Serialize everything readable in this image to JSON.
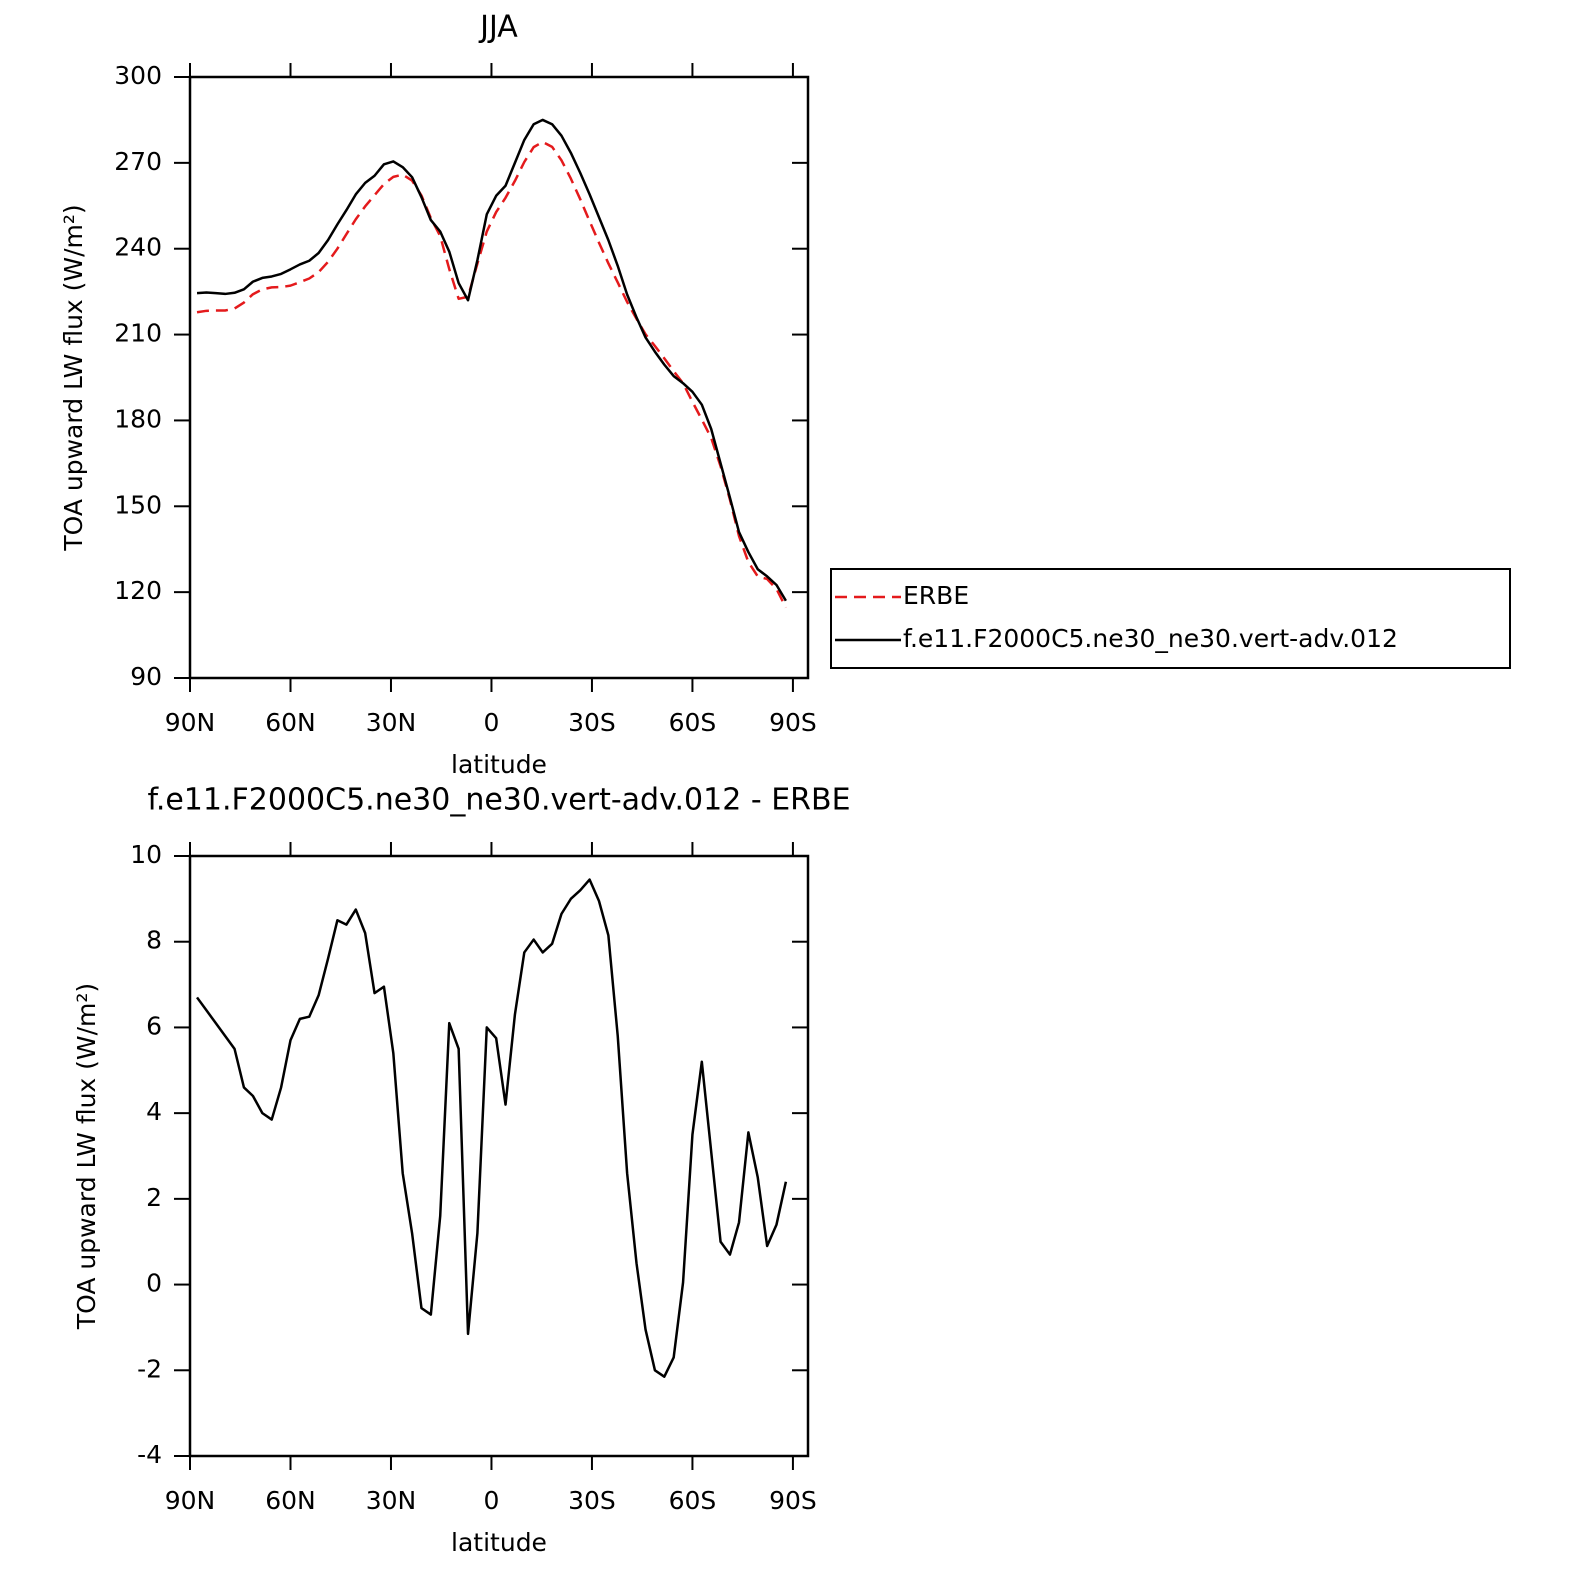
{
  "chart_data": [
    {
      "type": "line",
      "title": "JJA",
      "xlabel": "latitude",
      "ylabel": "TOA upward LW flux (W/m²)",
      "x": [
        87.9,
        85.1,
        82.3,
        79.5,
        76.7,
        73.9,
        71.2,
        68.4,
        65.6,
        62.8,
        60.0,
        57.2,
        54.4,
        51.6,
        48.8,
        46.0,
        43.3,
        40.5,
        37.7,
        34.9,
        32.1,
        29.3,
        26.5,
        23.7,
        20.9,
        18.1,
        15.3,
        12.6,
        9.8,
        7.0,
        4.2,
        1.4,
        -1.4,
        -4.2,
        -7.0,
        -9.8,
        -12.6,
        -15.3,
        -18.1,
        -20.9,
        -23.7,
        -26.5,
        -29.3,
        -32.1,
        -34.9,
        -37.7,
        -40.5,
        -43.3,
        -46.0,
        -48.8,
        -51.6,
        -54.4,
        -57.2,
        -60.0,
        -62.8,
        -65.6,
        -68.4,
        -71.2,
        -73.9,
        -76.7,
        -79.5,
        -82.3,
        -85.1,
        -87.9
      ],
      "series": [
        {
          "name": "ERBE",
          "color": "#e41a1c",
          "style": "dashed",
          "values": [
            217.8,
            218.3,
            218.4,
            218.4,
            219.1,
            221.2,
            224.1,
            225.8,
            226.5,
            226.6,
            227.1,
            228.3,
            229.6,
            231.8,
            235.4,
            240.0,
            245.1,
            250.3,
            254.8,
            258.7,
            262.6,
            265.1,
            265.9,
            263.8,
            258.6,
            250.7,
            244.4,
            232.9,
            222.5,
            223.2,
            234.8,
            246.0,
            252.8,
            257.8,
            263.7,
            270.3,
            275.5,
            277.3,
            275.6,
            270.9,
            264.5,
            257.3,
            249.6,
            242.1,
            234.9,
            228.2,
            221.4,
            215.5,
            210.1,
            206.0,
            201.7,
            197.2,
            193.0,
            186.5,
            180.3,
            173.9,
            164.0,
            152.3,
            139.6,
            130.5,
            125.5,
            124.6,
            121.1,
            114.6
          ]
        },
        {
          "name": "f.e11.F2000C5.ne30_ne30.vert-adv.012",
          "color": "#000000",
          "style": "solid",
          "values": [
            224.5,
            224.7,
            224.5,
            224.2,
            224.6,
            225.8,
            228.5,
            229.8,
            230.3,
            231.2,
            232.8,
            234.5,
            235.8,
            238.5,
            243,
            248.5,
            253.5,
            259,
            263,
            265.5,
            269.5,
            270.5,
            268.5,
            265,
            258,
            250,
            246,
            239,
            228,
            222,
            236,
            252,
            258.5,
            262,
            270,
            278,
            283.5,
            285,
            283.5,
            279.5,
            273.5,
            266.5,
            259,
            251,
            243,
            234,
            224,
            216,
            209,
            204,
            199.5,
            195.5,
            193,
            190,
            185.5,
            177,
            165,
            153,
            141,
            134,
            128,
            125.5,
            122.5,
            117
          ]
        }
      ],
      "xlim": [
        90,
        -94.5
      ],
      "xticks": [
        {
          "value": 90,
          "label": "90N"
        },
        {
          "value": 60,
          "label": "60N"
        },
        {
          "value": 30,
          "label": "30N"
        },
        0,
        {
          "value": -30,
          "label": "30S"
        },
        {
          "value": -60,
          "label": "60S"
        },
        {
          "value": -90,
          "label": "90S"
        }
      ],
      "ylim": [
        90,
        300
      ],
      "yticks": [
        90,
        120,
        150,
        180,
        210,
        240,
        270,
        300
      ],
      "legend": "right"
    },
    {
      "type": "line",
      "title": "f.e11.F2000C5.ne30_ne30.vert-adv.012 - ERBE",
      "xlabel": "latitude",
      "ylabel": "TOA upward LW flux (W/m²)",
      "x": [
        87.9,
        85.1,
        82.3,
        79.5,
        76.7,
        73.9,
        71.2,
        68.4,
        65.6,
        62.8,
        60.0,
        57.2,
        54.4,
        51.6,
        48.8,
        46.0,
        43.3,
        40.5,
        37.7,
        34.9,
        32.1,
        29.3,
        26.5,
        23.7,
        20.9,
        18.1,
        15.3,
        12.6,
        9.8,
        7.0,
        4.2,
        1.4,
        -1.4,
        -4.2,
        -7.0,
        -9.8,
        -12.6,
        -15.3,
        -18.1,
        -20.9,
        -23.7,
        -26.5,
        -29.3,
        -32.1,
        -34.9,
        -37.7,
        -40.5,
        -43.3,
        -46.0,
        -48.8,
        -51.6,
        -54.4,
        -57.2,
        -60.0,
        -62.8,
        -65.6,
        -68.4,
        -71.2,
        -73.9,
        -76.7,
        -79.5,
        -82.3,
        -85.1,
        -87.9
      ],
      "color": "#000000",
      "values": [
        6.7,
        6.4,
        6.1,
        5.8,
        5.5,
        4.6,
        4.4,
        4.0,
        3.85,
        4.6,
        5.7,
        6.2,
        6.25,
        6.75,
        7.6,
        8.5,
        8.4,
        8.75,
        8.2,
        6.8,
        6.95,
        5.4,
        2.6,
        1.2,
        -0.55,
        -0.7,
        1.6,
        6.1,
        5.5,
        -1.15,
        1.2,
        6.0,
        5.75,
        4.2,
        6.3,
        7.75,
        8.05,
        7.75,
        7.95,
        8.65,
        9.0,
        9.2,
        9.45,
        8.95,
        8.15,
        5.8,
        2.6,
        0.5,
        -1.05,
        -2.0,
        -2.15,
        -1.7,
        0.05,
        3.5,
        5.2,
        3.1,
        1.0,
        0.7,
        1.45,
        3.55,
        2.5,
        0.9,
        1.4,
        2.4
      ],
      "xlim": [
        90,
        -94.5
      ],
      "xticks": [
        {
          "value": 90,
          "label": "90N"
        },
        {
          "value": 60,
          "label": "60N"
        },
        {
          "value": 30,
          "label": "30N"
        },
        0,
        {
          "value": -30,
          "label": "30S"
        },
        {
          "value": -60,
          "label": "60S"
        },
        {
          "value": -90,
          "label": "90S"
        }
      ],
      "ylim": [
        -4,
        10
      ],
      "yticks": [
        -4,
        -2,
        0,
        2,
        4,
        6,
        8,
        10
      ]
    }
  ]
}
